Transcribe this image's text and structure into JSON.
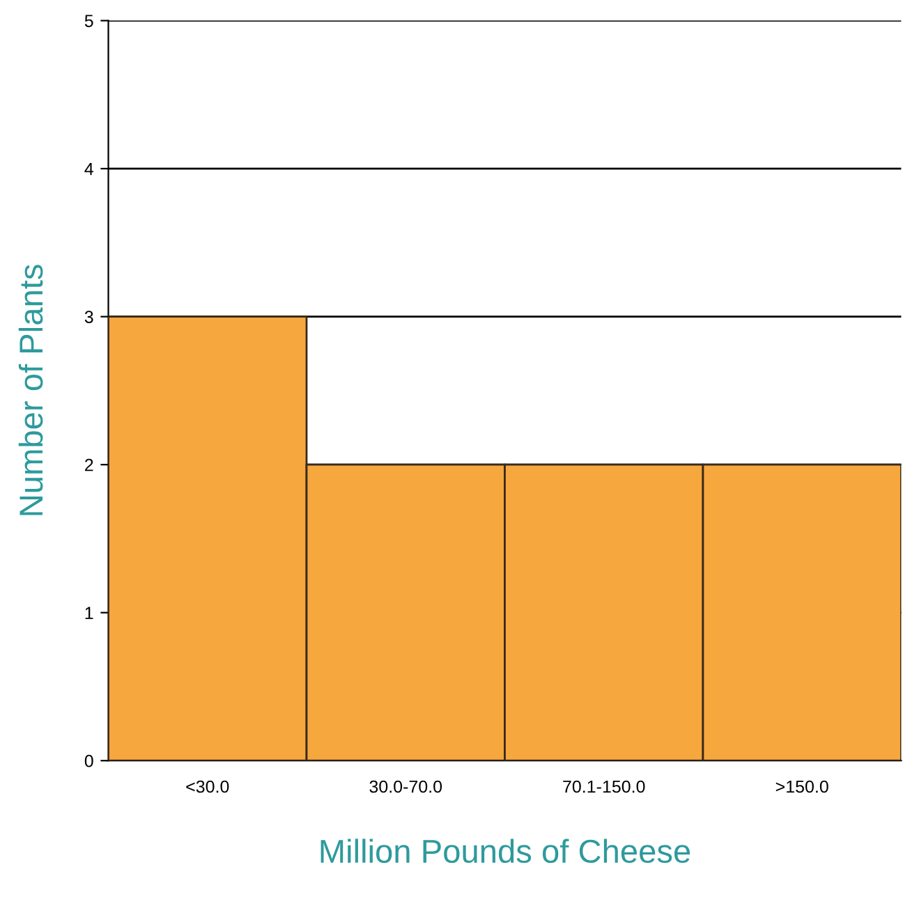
{
  "chart_data": {
    "type": "bar",
    "xlabel": "Million Pounds of Cheese",
    "ylabel": "Number of Plants",
    "categories": [
      "<30.0",
      "30.0-70.0",
      "70.1-150.0",
      ">150.0"
    ],
    "values": [
      3,
      2,
      2,
      2
    ],
    "color": "#f6a73e",
    "ylim": [
      0,
      5
    ],
    "yticks": [
      0,
      1,
      2,
      3,
      4,
      5
    ],
    "grid": "y"
  }
}
